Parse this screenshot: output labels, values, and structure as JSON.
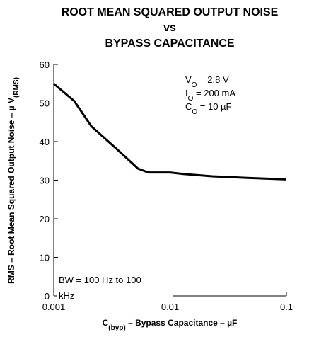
{
  "chart_data": {
    "type": "line",
    "title": [
      "ROOT MEAN SQUARED OUTPUT NOISE",
      "vs",
      "BYPASS CAPACITANCE"
    ],
    "x_label": [
      "C",
      "(byp)",
      " – Bypass Capacitance – µF"
    ],
    "y_label": [
      "RMS – Root Mean Squared Output Noise – µ V",
      "(RMS)"
    ],
    "x_log": true,
    "x": [
      0.001,
      0.0015,
      0.0021,
      0.0035,
      0.0053,
      0.0065,
      0.01,
      0.013,
      0.023,
      0.046,
      0.1
    ],
    "series": [
      {
        "name": null,
        "color": "#000000",
        "values": [
          55,
          50.5,
          44,
          38,
          33,
          32,
          32,
          31.6,
          31,
          30.6,
          30.2
        ]
      }
    ],
    "xlim": [
      0.001,
      0.1
    ],
    "xticks": [
      0.001,
      0.01,
      0.1
    ],
    "ylim": [
      0,
      60
    ],
    "yticks": [
      0,
      10,
      20,
      30,
      40,
      50,
      60
    ],
    "xgrid": [
      0.01
    ],
    "ygrid": [
      50
    ],
    "annotations": [
      [
        "V",
        "O",
        " = 2.8 V"
      ],
      [
        "I",
        "O",
        " = 200 mA"
      ],
      [
        "C",
        "O",
        " = 10 µF"
      ]
    ],
    "note": [
      "BW = 100 Hz to 100",
      "kHz"
    ]
  }
}
